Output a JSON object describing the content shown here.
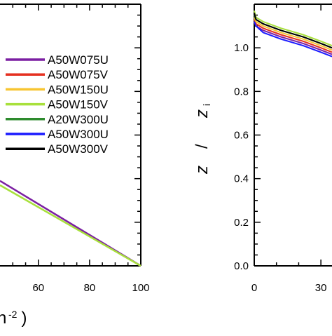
{
  "chart_data": [
    {
      "type": "line",
      "panel": "left",
      "xticks": [
        "60",
        "80",
        "100"
      ],
      "xlabel": "n",
      "xlabel_visible_fragment": "n⁻² )",
      "xlim": [
        45,
        100
      ],
      "ylim": [
        0.0,
        1.2
      ],
      "grid": false,
      "legend": {
        "placement": "right",
        "entries": [
          {
            "name": "A50W075U",
            "color": "#7b1fa2"
          },
          {
            "name": "A50W075V",
            "color": "#e53020"
          },
          {
            "name": "A50W150U",
            "color": "#f7c531"
          },
          {
            "name": "A50W150V",
            "color": "#a8e03c"
          },
          {
            "name": "A20W300U",
            "color": "#2e8b2e"
          },
          {
            "name": "A50W300U",
            "color": "#1a1aff"
          },
          {
            "name": "A50W300V",
            "color": "#000000"
          }
        ]
      },
      "series": [
        {
          "name": "A50W075U",
          "color": "#7b1fa2",
          "x": [
            45,
            100
          ],
          "y": [
            0.39,
            0.0
          ]
        },
        {
          "name": "A50W150V",
          "color": "#a8e03c",
          "x": [
            45,
            100
          ],
          "y": [
            0.37,
            0.0
          ]
        }
      ]
    },
    {
      "type": "line",
      "panel": "right",
      "ylabel": "z / z_i",
      "ylabel_main": "z",
      "ylabel_slash": "/",
      "ylabel_den": "z",
      "ylabel_sub": "i",
      "yticks": [
        "0.0",
        "0.2",
        "0.4",
        "0.6",
        "0.8",
        "1.0"
      ],
      "xticks": [
        "0",
        "30"
      ],
      "xlim": [
        0,
        35
      ],
      "ylim": [
        0.0,
        1.2
      ],
      "grid": false,
      "series": [
        {
          "name": "A50W075U",
          "color": "#7b1fa2",
          "x": [
            0,
            0.8,
            4,
            12,
            22,
            30,
            35
          ],
          "y": [
            1.12,
            1.1,
            1.08,
            1.05,
            1.02,
            0.99,
            0.97
          ]
        },
        {
          "name": "A50W075V",
          "color": "#e53020",
          "x": [
            0,
            0.8,
            4,
            12,
            22,
            30,
            35
          ],
          "y": [
            1.13,
            1.11,
            1.09,
            1.06,
            1.03,
            1.0,
            0.98
          ]
        },
        {
          "name": "A50W150U",
          "color": "#f7c531",
          "x": [
            0,
            0.8,
            4,
            12,
            22,
            30,
            35
          ],
          "y": [
            1.14,
            1.12,
            1.1,
            1.07,
            1.04,
            1.01,
            0.99
          ]
        },
        {
          "name": "A50W150V",
          "color": "#a8e03c",
          "x": [
            0,
            0.8,
            4,
            12,
            22,
            30,
            35
          ],
          "y": [
            1.17,
            1.14,
            1.12,
            1.09,
            1.06,
            1.03,
            1.01
          ]
        },
        {
          "name": "A20W300U",
          "color": "#2e8b2e",
          "x": [
            0,
            0.8,
            4,
            12,
            22,
            30,
            35
          ],
          "y": [
            1.15,
            1.13,
            1.11,
            1.08,
            1.05,
            1.02,
            1.0
          ]
        },
        {
          "name": "A50W300U",
          "color": "#1a1aff",
          "x": [
            0,
            0.8,
            4,
            12,
            22,
            30,
            35
          ],
          "y": [
            1.12,
            1.1,
            1.07,
            1.04,
            1.01,
            0.98,
            0.96
          ]
        },
        {
          "name": "A50W300V",
          "color": "#000000",
          "x": [
            0,
            0.8,
            4,
            12,
            22,
            30,
            35
          ],
          "y": [
            1.16,
            1.13,
            1.11,
            1.08,
            1.05,
            1.02,
            1.0
          ]
        }
      ]
    }
  ]
}
